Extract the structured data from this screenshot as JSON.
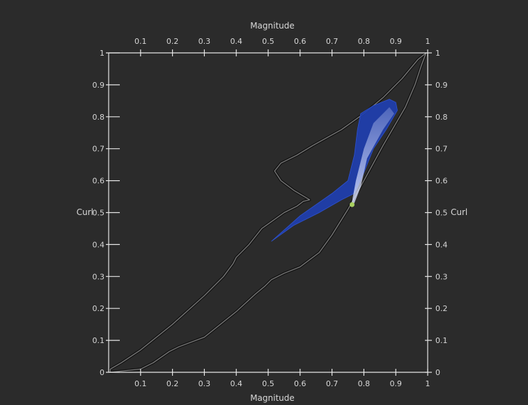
{
  "chart_data": {
    "type": "scatter",
    "xlabel": "Magnitude",
    "ylabel": "Curl",
    "xlim": [
      0,
      1
    ],
    "ylim": [
      0,
      1
    ],
    "x_ticks": [
      "0.1",
      "0.2",
      "0.3",
      "0.4",
      "0.5",
      "0.6",
      "0.7",
      "0.8",
      "0.9",
      "1"
    ],
    "y_ticks": [
      "0",
      "0.1",
      "0.2",
      "0.3",
      "0.4",
      "0.5",
      "0.6",
      "0.7",
      "0.8",
      "0.9",
      "1"
    ],
    "x_tick_values": [
      0.1,
      0.2,
      0.3,
      0.4,
      0.5,
      0.6,
      0.7,
      0.8,
      0.9,
      1.0
    ],
    "y_tick_values": [
      0,
      0.1,
      0.2,
      0.3,
      0.4,
      0.5,
      0.6,
      0.7,
      0.8,
      0.9,
      1.0
    ],
    "grid": false,
    "colors": {
      "background": "#2b2b2b",
      "axes": "#e6e6e6",
      "outline": "#7a7a7a",
      "density": "#1f3fb0",
      "highlight": "#d8e0ff",
      "peak": "#a8d060"
    },
    "outline_region": [
      [
        0.005,
        0.01
      ],
      [
        0.04,
        0.03
      ],
      [
        0.1,
        0.07
      ],
      [
        0.2,
        0.15
      ],
      [
        0.3,
        0.24
      ],
      [
        0.36,
        0.3
      ],
      [
        0.39,
        0.34
      ],
      [
        0.4,
        0.36
      ],
      [
        0.44,
        0.4
      ],
      [
        0.48,
        0.45
      ],
      [
        0.55,
        0.5
      ],
      [
        0.59,
        0.52
      ],
      [
        0.61,
        0.535
      ],
      [
        0.63,
        0.54
      ],
      [
        0.58,
        0.57
      ],
      [
        0.54,
        0.6
      ],
      [
        0.52,
        0.63
      ],
      [
        0.54,
        0.655
      ],
      [
        0.59,
        0.68
      ],
      [
        0.64,
        0.71
      ],
      [
        0.73,
        0.76
      ],
      [
        0.8,
        0.81
      ],
      [
        0.86,
        0.86
      ],
      [
        0.92,
        0.92
      ],
      [
        0.97,
        0.98
      ],
      [
        0.995,
        1.0
      ],
      [
        0.98,
        0.96
      ],
      [
        0.96,
        0.9
      ],
      [
        0.93,
        0.83
      ],
      [
        0.86,
        0.71
      ],
      [
        0.8,
        0.6
      ],
      [
        0.75,
        0.51
      ],
      [
        0.7,
        0.43
      ],
      [
        0.66,
        0.375
      ],
      [
        0.6,
        0.33
      ],
      [
        0.55,
        0.31
      ],
      [
        0.51,
        0.29
      ],
      [
        0.49,
        0.27
      ],
      [
        0.46,
        0.245
      ],
      [
        0.4,
        0.19
      ],
      [
        0.3,
        0.11
      ],
      [
        0.22,
        0.08
      ],
      [
        0.19,
        0.065
      ],
      [
        0.14,
        0.03
      ],
      [
        0.1,
        0.01
      ],
      [
        0.005,
        0.0
      ]
    ],
    "density_region": [
      [
        0.51,
        0.41
      ],
      [
        0.58,
        0.46
      ],
      [
        0.66,
        0.5
      ],
      [
        0.73,
        0.54
      ],
      [
        0.77,
        0.56
      ],
      [
        0.8,
        0.625
      ],
      [
        0.83,
        0.7
      ],
      [
        0.87,
        0.76
      ],
      [
        0.905,
        0.82
      ],
      [
        0.9,
        0.845
      ],
      [
        0.88,
        0.855
      ],
      [
        0.83,
        0.835
      ],
      [
        0.79,
        0.81
      ],
      [
        0.78,
        0.76
      ],
      [
        0.77,
        0.68
      ],
      [
        0.75,
        0.6
      ],
      [
        0.7,
        0.56
      ],
      [
        0.6,
        0.49
      ],
      [
        0.51,
        0.41
      ]
    ],
    "highlight_region": [
      [
        0.76,
        0.52
      ],
      [
        0.775,
        0.6
      ],
      [
        0.8,
        0.7
      ],
      [
        0.83,
        0.78
      ],
      [
        0.88,
        0.83
      ],
      [
        0.895,
        0.81
      ],
      [
        0.86,
        0.76
      ],
      [
        0.81,
        0.67
      ],
      [
        0.79,
        0.58
      ],
      [
        0.77,
        0.53
      ]
    ],
    "peak_point": [
      0.763,
      0.525
    ]
  }
}
